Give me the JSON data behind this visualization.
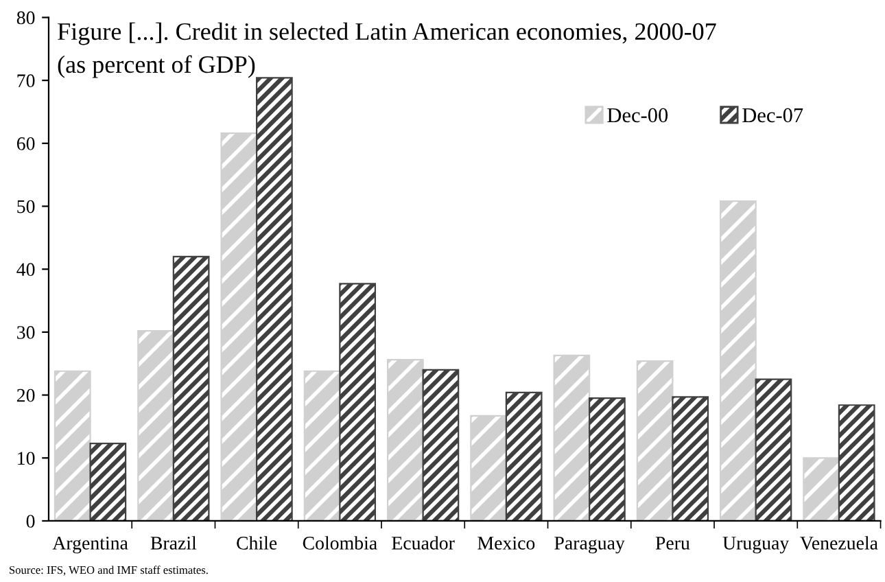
{
  "chart_data": {
    "type": "bar",
    "title": "Figure [...]. Credit in selected Latin American economies, 2000-07",
    "subtitle": "(as percent of GDP)",
    "categories": [
      "Argentina",
      "Brazil",
      "Chile",
      "Colombia",
      "Ecuador",
      "Mexico",
      "Paraguay",
      "Peru",
      "Uruguay",
      "Venezuela"
    ],
    "series": [
      {
        "name": "Dec-00",
        "color": "#d0d0d0",
        "values": [
          23.8,
          30.2,
          61.6,
          23.8,
          25.6,
          16.7,
          26.3,
          25.4,
          50.8,
          10.0
        ]
      },
      {
        "name": "Dec-07",
        "color": "#404040",
        "values": [
          12.3,
          42.0,
          70.4,
          37.7,
          24.0,
          20.4,
          19.5,
          19.7,
          22.5,
          18.4
        ]
      }
    ],
    "ylim": [
      0,
      80
    ],
    "yticks": [
      0,
      10,
      20,
      30,
      40,
      50,
      60,
      70,
      80
    ],
    "grid": false,
    "legend": "top right",
    "annotations": [
      "Source: IFS, WEO and IMF staff estimates."
    ]
  }
}
